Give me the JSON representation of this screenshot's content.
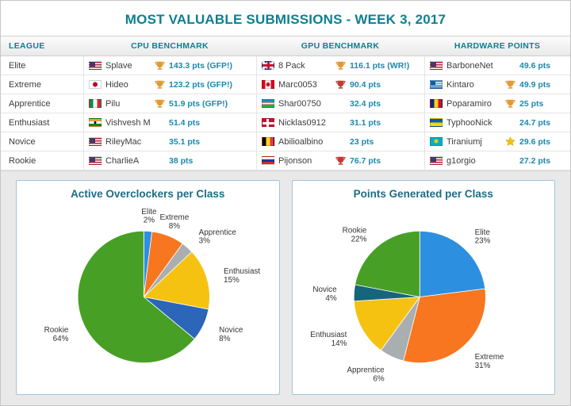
{
  "title": "MOST VALUABLE SUBMISSIONS - WEEK 3, 2017",
  "colors": {
    "accent": "#0d7f91",
    "chart_title": "#1c6d86",
    "pts": "#1b89ae",
    "trophy_gold": "#E29A33",
    "trophy_red": "#C23B33",
    "star": "#F2C211"
  },
  "table": {
    "headers": [
      "LEAGUE",
      "CPU BENCHMARK",
      "GPU BENCHMARK",
      "HARDWARE POINTS"
    ],
    "rows": [
      {
        "league": "Elite",
        "cpu": {
          "flag": "us",
          "name": "Splave",
          "trophy": "gold",
          "pts": "143.3 pts (GFP!)"
        },
        "gpu": {
          "flag": "gb",
          "name": "8 Pack",
          "trophy": "gold",
          "pts": "116.1 pts (WR!)"
        },
        "hw": {
          "flag": "us",
          "name": "BarboneNet",
          "trophy": "",
          "pts": "49.6 pts"
        }
      },
      {
        "league": "Extreme",
        "cpu": {
          "flag": "jp",
          "name": "Hideo",
          "trophy": "gold",
          "pts": "123.2 pts (GFP!)"
        },
        "gpu": {
          "flag": "ca",
          "name": "Marc0053",
          "trophy": "red",
          "pts": "90.4 pts"
        },
        "hw": {
          "flag": "gr",
          "name": "Kintaro",
          "trophy": "gold",
          "pts": "49.9 pts"
        }
      },
      {
        "league": "Apprentice",
        "cpu": {
          "flag": "it",
          "name": "Pilu",
          "trophy": "gold",
          "pts": "51.9 pts (GFP!)"
        },
        "gpu": {
          "flag": "uz",
          "name": "Shar00750",
          "trophy": "",
          "pts": "32.4 pts"
        },
        "hw": {
          "flag": "ro",
          "name": "Poparamiro",
          "trophy": "gold",
          "pts": "25 pts"
        }
      },
      {
        "league": "Enthusiast",
        "cpu": {
          "flag": "in",
          "name": "Vishvesh Mishra",
          "trophy": "",
          "pts": "51.4 pts"
        },
        "gpu": {
          "flag": "dk",
          "name": "Nicklas0912",
          "trophy": "",
          "pts": "31.1 pts"
        },
        "hw": {
          "flag": "ua",
          "name": "TyphooNick",
          "trophy": "",
          "pts": "24.7 pts"
        }
      },
      {
        "league": "Novice",
        "cpu": {
          "flag": "us",
          "name": "RileyMac",
          "trophy": "",
          "pts": "35.1 pts"
        },
        "gpu": {
          "flag": "be",
          "name": "Abilioalbino",
          "trophy": "",
          "pts": "23 pts"
        },
        "hw": {
          "flag": "kz",
          "name": "Tiraniumj",
          "trophy": "star",
          "pts": "29.6 pts"
        }
      },
      {
        "league": "Rookie",
        "cpu": {
          "flag": "us",
          "name": "CharlieA",
          "trophy": "",
          "pts": "38 pts"
        },
        "gpu": {
          "flag": "ru",
          "name": "Pijonson",
          "trophy": "red",
          "pts": "76.7 pts"
        },
        "hw": {
          "flag": "us",
          "name": "g1orgio",
          "trophy": "",
          "pts": "27.2 pts"
        }
      }
    ]
  },
  "chart_data": [
    {
      "type": "pie",
      "title": "Active Overclockers per Class",
      "labels": [
        "Elite",
        "Extreme",
        "Apprentice",
        "Enthusiast",
        "Novice",
        "Rookie"
      ],
      "values": [
        2,
        8,
        3,
        15,
        8,
        64
      ],
      "colors": [
        "#2D8FE0",
        "#F7761F",
        "#A9AEB0",
        "#F5C211",
        "#2B66B8",
        "#47A025"
      ],
      "value_format": "percent",
      "legend": "none"
    },
    {
      "type": "pie",
      "title": "Points Generated per Class",
      "labels": [
        "Elite",
        "Extreme",
        "Apprentice",
        "Enthusiast",
        "Novice",
        "Rookie"
      ],
      "values": [
        23,
        31,
        6,
        14,
        4,
        22
      ],
      "colors": [
        "#2D8FE0",
        "#F7761F",
        "#A9AEB0",
        "#F5C211",
        "#17657D",
        "#47A025"
      ],
      "value_format": "percent",
      "legend": "none"
    }
  ]
}
